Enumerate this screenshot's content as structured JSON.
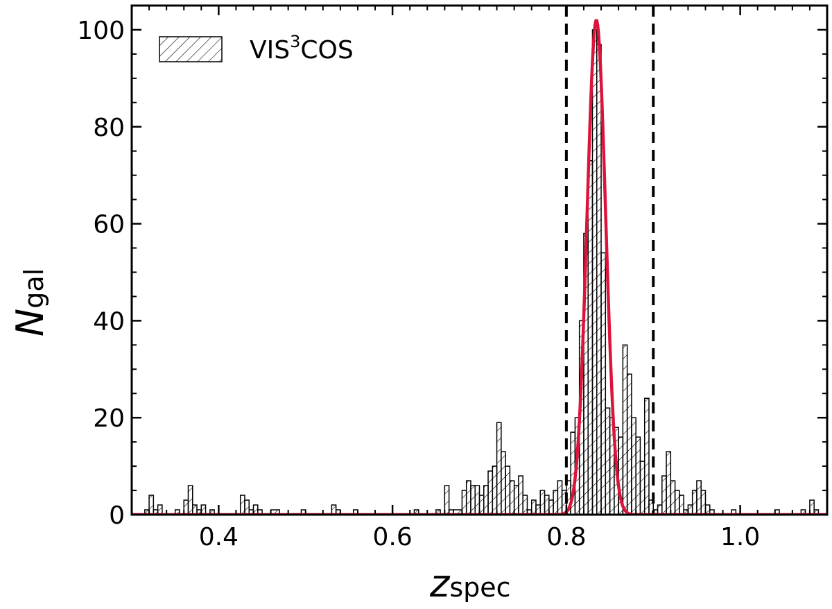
{
  "chart_data": {
    "type": "bar",
    "xlabel": {
      "main": "z",
      "sub": "spec"
    },
    "ylabel": {
      "main": "N",
      "sub": "gal"
    },
    "xlim": [
      0.3,
      1.1
    ],
    "ylim": [
      0,
      105
    ],
    "xticks": [
      0.4,
      0.6,
      0.8,
      1.0
    ],
    "xtick_labels": [
      "0.4",
      "0.6",
      "0.8",
      "1.0"
    ],
    "yticks": [
      0,
      20,
      40,
      60,
      80,
      100
    ],
    "ytick_labels": [
      "0",
      "20",
      "40",
      "60",
      "80",
      "100"
    ],
    "grid": false,
    "legend": {
      "position": "top-left",
      "label_main": "VIS",
      "label_sup": "3",
      "label_rest": "COS"
    },
    "histogram": {
      "name": "VIS3COS",
      "bin_width": 0.005,
      "bins": [
        [
          0.315,
          0.32,
          1
        ],
        [
          0.32,
          0.325,
          4
        ],
        [
          0.325,
          0.33,
          1
        ],
        [
          0.33,
          0.335,
          2
        ],
        [
          0.35,
          0.355,
          1
        ],
        [
          0.36,
          0.365,
          3
        ],
        [
          0.365,
          0.37,
          6
        ],
        [
          0.37,
          0.375,
          2
        ],
        [
          0.375,
          0.38,
          1
        ],
        [
          0.38,
          0.385,
          2
        ],
        [
          0.39,
          0.395,
          1
        ],
        [
          0.425,
          0.43,
          4
        ],
        [
          0.43,
          0.435,
          3
        ],
        [
          0.435,
          0.44,
          1
        ],
        [
          0.44,
          0.445,
          2
        ],
        [
          0.445,
          0.45,
          1
        ],
        [
          0.46,
          0.47,
          1
        ],
        [
          0.495,
          0.5,
          1
        ],
        [
          0.53,
          0.535,
          2
        ],
        [
          0.535,
          0.54,
          1
        ],
        [
          0.555,
          0.56,
          1
        ],
        [
          0.625,
          0.63,
          1
        ],
        [
          0.65,
          0.655,
          1
        ],
        [
          0.66,
          0.665,
          6
        ],
        [
          0.665,
          0.67,
          1
        ],
        [
          0.67,
          0.68,
          1
        ],
        [
          0.68,
          0.685,
          5
        ],
        [
          0.685,
          0.69,
          7
        ],
        [
          0.69,
          0.695,
          6
        ],
        [
          0.695,
          0.7,
          6
        ],
        [
          0.7,
          0.705,
          4
        ],
        [
          0.705,
          0.71,
          6
        ],
        [
          0.71,
          0.715,
          9
        ],
        [
          0.715,
          0.72,
          10
        ],
        [
          0.72,
          0.725,
          19
        ],
        [
          0.725,
          0.73,
          13
        ],
        [
          0.73,
          0.735,
          10
        ],
        [
          0.735,
          0.74,
          7
        ],
        [
          0.74,
          0.745,
          6
        ],
        [
          0.745,
          0.75,
          8
        ],
        [
          0.75,
          0.755,
          4
        ],
        [
          0.755,
          0.76,
          1
        ],
        [
          0.76,
          0.765,
          3
        ],
        [
          0.765,
          0.77,
          2
        ],
        [
          0.77,
          0.775,
          5
        ],
        [
          0.775,
          0.78,
          4
        ],
        [
          0.78,
          0.785,
          3
        ],
        [
          0.785,
          0.79,
          5
        ],
        [
          0.79,
          0.795,
          7
        ],
        [
          0.795,
          0.8,
          5
        ],
        [
          0.8,
          0.805,
          7
        ],
        [
          0.805,
          0.81,
          17
        ],
        [
          0.81,
          0.815,
          20
        ],
        [
          0.815,
          0.82,
          40
        ],
        [
          0.82,
          0.825,
          58
        ],
        [
          0.825,
          0.83,
          73
        ],
        [
          0.83,
          0.835,
          100
        ],
        [
          0.835,
          0.84,
          97
        ],
        [
          0.84,
          0.845,
          54
        ],
        [
          0.845,
          0.85,
          22
        ],
        [
          0.85,
          0.855,
          20
        ],
        [
          0.855,
          0.86,
          18
        ],
        [
          0.86,
          0.865,
          16
        ],
        [
          0.865,
          0.87,
          35
        ],
        [
          0.87,
          0.875,
          29
        ],
        [
          0.875,
          0.88,
          20
        ],
        [
          0.88,
          0.885,
          16
        ],
        [
          0.885,
          0.89,
          11
        ],
        [
          0.89,
          0.895,
          24
        ],
        [
          0.895,
          0.9,
          3
        ],
        [
          0.9,
          0.905,
          1
        ],
        [
          0.905,
          0.91,
          2
        ],
        [
          0.91,
          0.915,
          8
        ],
        [
          0.915,
          0.92,
          13
        ],
        [
          0.92,
          0.925,
          7
        ],
        [
          0.925,
          0.93,
          5
        ],
        [
          0.93,
          0.935,
          4
        ],
        [
          0.935,
          0.94,
          1
        ],
        [
          0.94,
          0.945,
          2
        ],
        [
          0.945,
          0.95,
          5
        ],
        [
          0.95,
          0.955,
          7
        ],
        [
          0.955,
          0.96,
          5
        ],
        [
          0.96,
          0.965,
          2
        ],
        [
          0.965,
          0.97,
          1
        ],
        [
          0.99,
          0.995,
          1
        ],
        [
          1.04,
          1.045,
          1
        ],
        [
          1.07,
          1.075,
          1
        ],
        [
          1.08,
          1.085,
          3
        ],
        [
          1.085,
          1.09,
          1
        ]
      ]
    },
    "gaussian_fit": {
      "color": "#dc143c",
      "amplitude": 102,
      "mean": 0.8345,
      "sigma": 0.0107
    },
    "vertical_lines": [
      0.8,
      0.9
    ],
    "colors": {
      "axis": "#000000",
      "bars": "#000000",
      "fit": "#dc143c"
    }
  }
}
